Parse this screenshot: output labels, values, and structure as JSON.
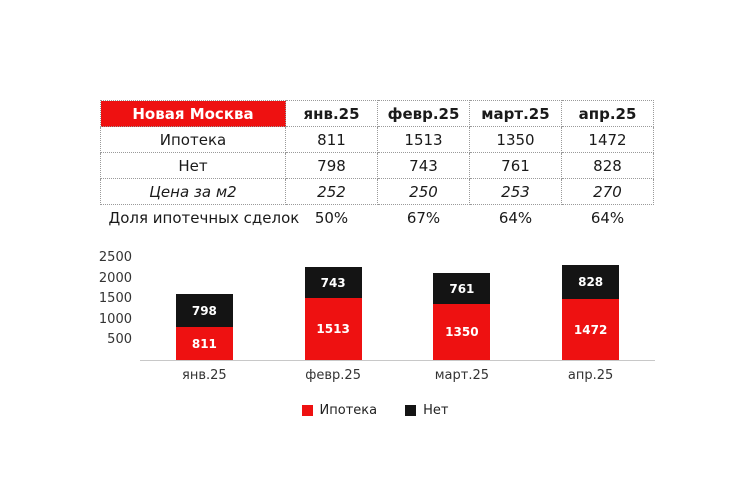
{
  "table": {
    "title": "Новая Москва",
    "columns": [
      "янв.25",
      "февр.25",
      "март.25",
      "апр.25"
    ],
    "rows": [
      {
        "label": "Ипотека",
        "values": [
          "811",
          "1513",
          "1350",
          "1472"
        ]
      },
      {
        "label": "Нет",
        "values": [
          "798",
          "743",
          "761",
          "828"
        ]
      },
      {
        "label": "Цена за м2",
        "values": [
          "252",
          "250",
          "253",
          "270"
        ]
      },
      {
        "label": "Доля ипотечных сделок",
        "values": [
          "50%",
          "67%",
          "64%",
          "64%"
        ]
      }
    ]
  },
  "chart_data": {
    "type": "bar",
    "stacked": true,
    "title": "",
    "categories": [
      "янв.25",
      "февр.25",
      "март.25",
      "апр.25"
    ],
    "series": [
      {
        "name": "Ипотека",
        "color": "#ee1111",
        "values": [
          811,
          1513,
          1350,
          1472
        ]
      },
      {
        "name": "Нет",
        "color": "#141414",
        "values": [
          798,
          743,
          761,
          828
        ]
      }
    ],
    "ylim": [
      0,
      2500
    ],
    "yticks": [
      500,
      1000,
      1500,
      2000,
      2500
    ],
    "grid": false,
    "legend_position": "bottom",
    "data_labels": true
  },
  "colors": {
    "header_red": "#ee1111",
    "series_black": "#141414",
    "axis_gray": "#c8c8c8"
  }
}
